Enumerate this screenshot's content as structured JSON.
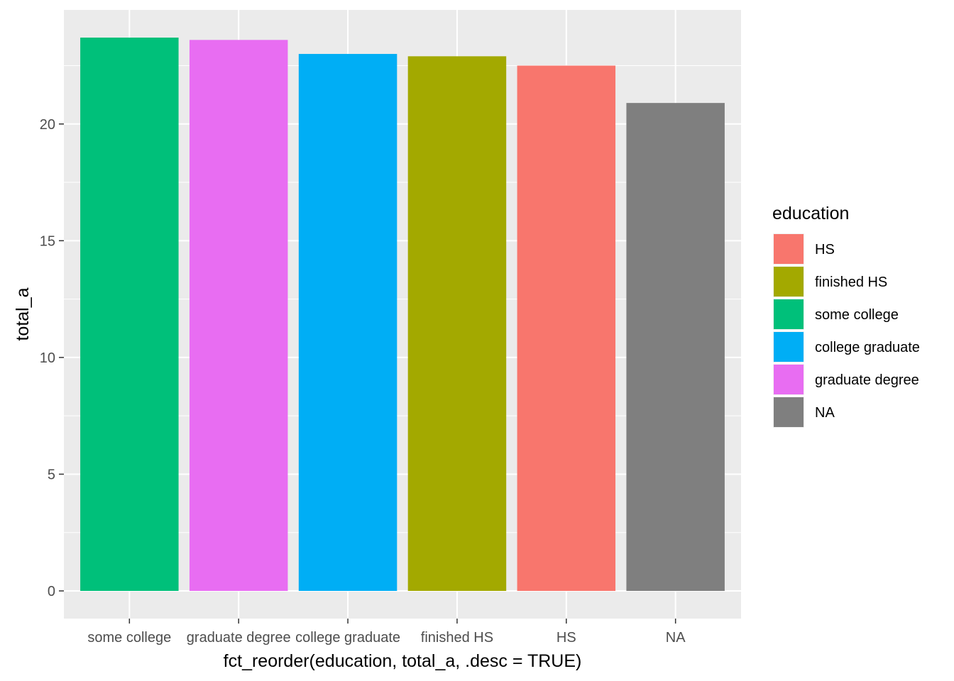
{
  "chart_data": {
    "type": "bar",
    "categories": [
      "some college",
      "graduate degree",
      "college graduate",
      "finished HS",
      "HS",
      "NA"
    ],
    "values": [
      23.7,
      23.6,
      23.0,
      22.9,
      22.5,
      20.9
    ],
    "bar_colors": [
      "#00C07A",
      "#E86DF2",
      "#00AEF5",
      "#A3A900",
      "#F8766D",
      "#7F7F7F"
    ],
    "xlabel": "fct_reorder(education, total_a, .desc = TRUE)",
    "ylabel": "total_a",
    "ylim": [
      -1.185,
      24.885
    ],
    "yticks": [
      0,
      5,
      10,
      15,
      20
    ],
    "grid": true,
    "panel_background": "#EBEBEB",
    "legend": {
      "title": "education",
      "position": "right",
      "items": [
        {
          "label": "HS",
          "color": "#F8766D"
        },
        {
          "label": "finished HS",
          "color": "#A3A900"
        },
        {
          "label": "some college",
          "color": "#00C07A"
        },
        {
          "label": "college graduate",
          "color": "#00AEF5"
        },
        {
          "label": "graduate degree",
          "color": "#E86DF2"
        },
        {
          "label": "NA",
          "color": "#7F7F7F"
        }
      ]
    }
  }
}
